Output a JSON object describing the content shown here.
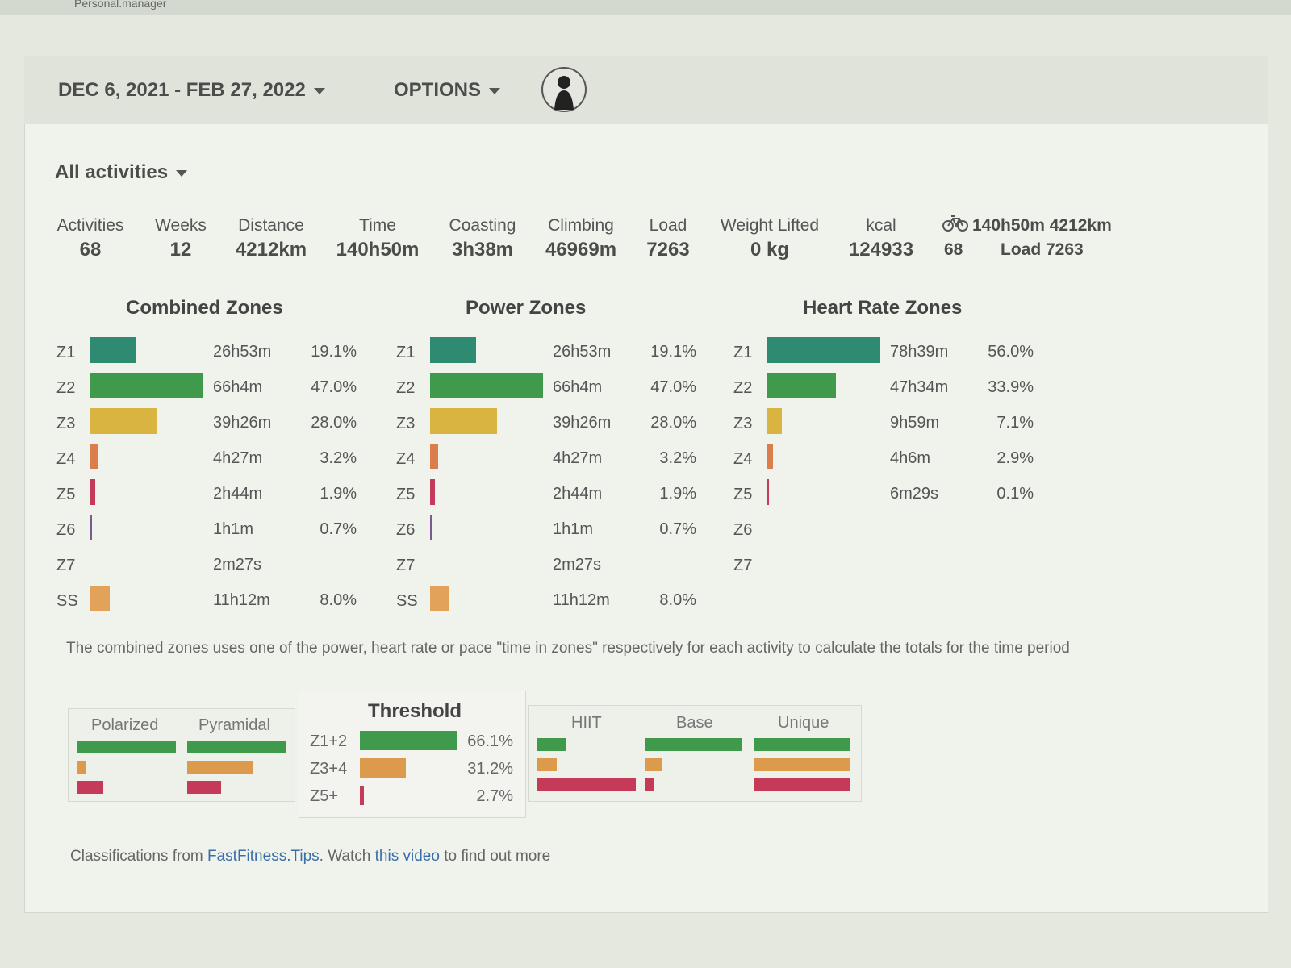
{
  "browser": {
    "tab": "Personal.manager"
  },
  "header": {
    "date_range": "DEC 6, 2021 - FEB 27, 2022",
    "options": "OPTIONS"
  },
  "filter": "All activities",
  "summary": [
    {
      "label": "Activities",
      "value": "68"
    },
    {
      "label": "Weeks",
      "value": "12"
    },
    {
      "label": "Distance",
      "value": "4212km"
    },
    {
      "label": "Time",
      "value": "140h50m"
    },
    {
      "label": "Coasting",
      "value": "3h38m"
    },
    {
      "label": "Climbing",
      "value": "46969m"
    },
    {
      "label": "Load",
      "value": "7263"
    },
    {
      "label": "Weight Lifted",
      "value": "0 kg"
    },
    {
      "label": "kcal",
      "value": "124933"
    }
  ],
  "ride_summary": {
    "time_distance": "140h50m 4212km",
    "count": "68",
    "load": "Load 7263"
  },
  "zone_colors": {
    "Z1": "#2f8a72",
    "Z2": "#3f9a4c",
    "Z3": "#d9b440",
    "Z4": "#db7e4c",
    "Z5": "#c43a58",
    "Z6": "#7b5a8e",
    "Z7": "#555555",
    "SS": "#e2a25a"
  },
  "zones": [
    {
      "title": "Combined Zones",
      "rows": [
        {
          "zone": "Z1",
          "time": "26h53m",
          "pct": 19.1,
          "pct_label": "19.1%"
        },
        {
          "zone": "Z2",
          "time": "66h4m",
          "pct": 47.0,
          "pct_label": "47.0%"
        },
        {
          "zone": "Z3",
          "time": "39h26m",
          "pct": 28.0,
          "pct_label": "28.0%"
        },
        {
          "zone": "Z4",
          "time": "4h27m",
          "pct": 3.2,
          "pct_label": "3.2%"
        },
        {
          "zone": "Z5",
          "time": "2h44m",
          "pct": 1.9,
          "pct_label": "1.9%"
        },
        {
          "zone": "Z6",
          "time": "1h1m",
          "pct": 0.7,
          "pct_label": "0.7%"
        },
        {
          "zone": "Z7",
          "time": "2m27s",
          "pct": null,
          "pct_label": null
        },
        {
          "zone": "SS",
          "time": "11h12m",
          "pct": 8.0,
          "pct_label": "8.0%"
        }
      ]
    },
    {
      "title": "Power Zones",
      "rows": [
        {
          "zone": "Z1",
          "time": "26h53m",
          "pct": 19.1,
          "pct_label": "19.1%"
        },
        {
          "zone": "Z2",
          "time": "66h4m",
          "pct": 47.0,
          "pct_label": "47.0%"
        },
        {
          "zone": "Z3",
          "time": "39h26m",
          "pct": 28.0,
          "pct_label": "28.0%"
        },
        {
          "zone": "Z4",
          "time": "4h27m",
          "pct": 3.2,
          "pct_label": "3.2%"
        },
        {
          "zone": "Z5",
          "time": "2h44m",
          "pct": 1.9,
          "pct_label": "1.9%"
        },
        {
          "zone": "Z6",
          "time": "1h1m",
          "pct": 0.7,
          "pct_label": "0.7%"
        },
        {
          "zone": "Z7",
          "time": "2m27s",
          "pct": null,
          "pct_label": null
        },
        {
          "zone": "SS",
          "time": "11h12m",
          "pct": 8.0,
          "pct_label": "8.0%"
        }
      ]
    },
    {
      "title": "Heart Rate Zones",
      "rows": [
        {
          "zone": "Z1",
          "time": "78h39m",
          "pct": 56.0,
          "pct_label": "56.0%"
        },
        {
          "zone": "Z2",
          "time": "47h34m",
          "pct": 33.9,
          "pct_label": "33.9%"
        },
        {
          "zone": "Z3",
          "time": "9h59m",
          "pct": 7.1,
          "pct_label": "7.1%"
        },
        {
          "zone": "Z4",
          "time": "4h6m",
          "pct": 2.9,
          "pct_label": "2.9%"
        },
        {
          "zone": "Z5",
          "time": "6m29s",
          "pct": 0.1,
          "pct_label": "0.1%"
        },
        {
          "zone": "Z6",
          "time": null,
          "pct": null,
          "pct_label": null
        },
        {
          "zone": "Z7",
          "time": null,
          "pct": null,
          "pct_label": null
        }
      ]
    }
  ],
  "note": "The combined zones uses one of the power, heart rate or pace \"time in zones\" respectively for each activity to calculate the totals for the time period",
  "classifications": {
    "polarized": "Polarized",
    "pyramidal": "Pyramidal",
    "hiit": "HIIT",
    "base": "Base",
    "unique": "Unique",
    "threshold": {
      "title": "Threshold",
      "colors": [
        "#3f9a4c",
        "#db9a4c",
        "#c43a58"
      ],
      "rows": [
        {
          "label": "Z1+2",
          "pct": 66.1,
          "pct_label": "66.1%"
        },
        {
          "label": "Z3+4",
          "pct": 31.2,
          "pct_label": "31.2%"
        },
        {
          "label": "Z5+",
          "pct": 2.7,
          "pct_label": "2.7%"
        }
      ]
    }
  },
  "footer": {
    "prefix": "Classifications from",
    "link1": "FastFitness.Tips",
    "middle": ". Watch",
    "link2": "this video",
    "suffix": "to find out more"
  }
}
